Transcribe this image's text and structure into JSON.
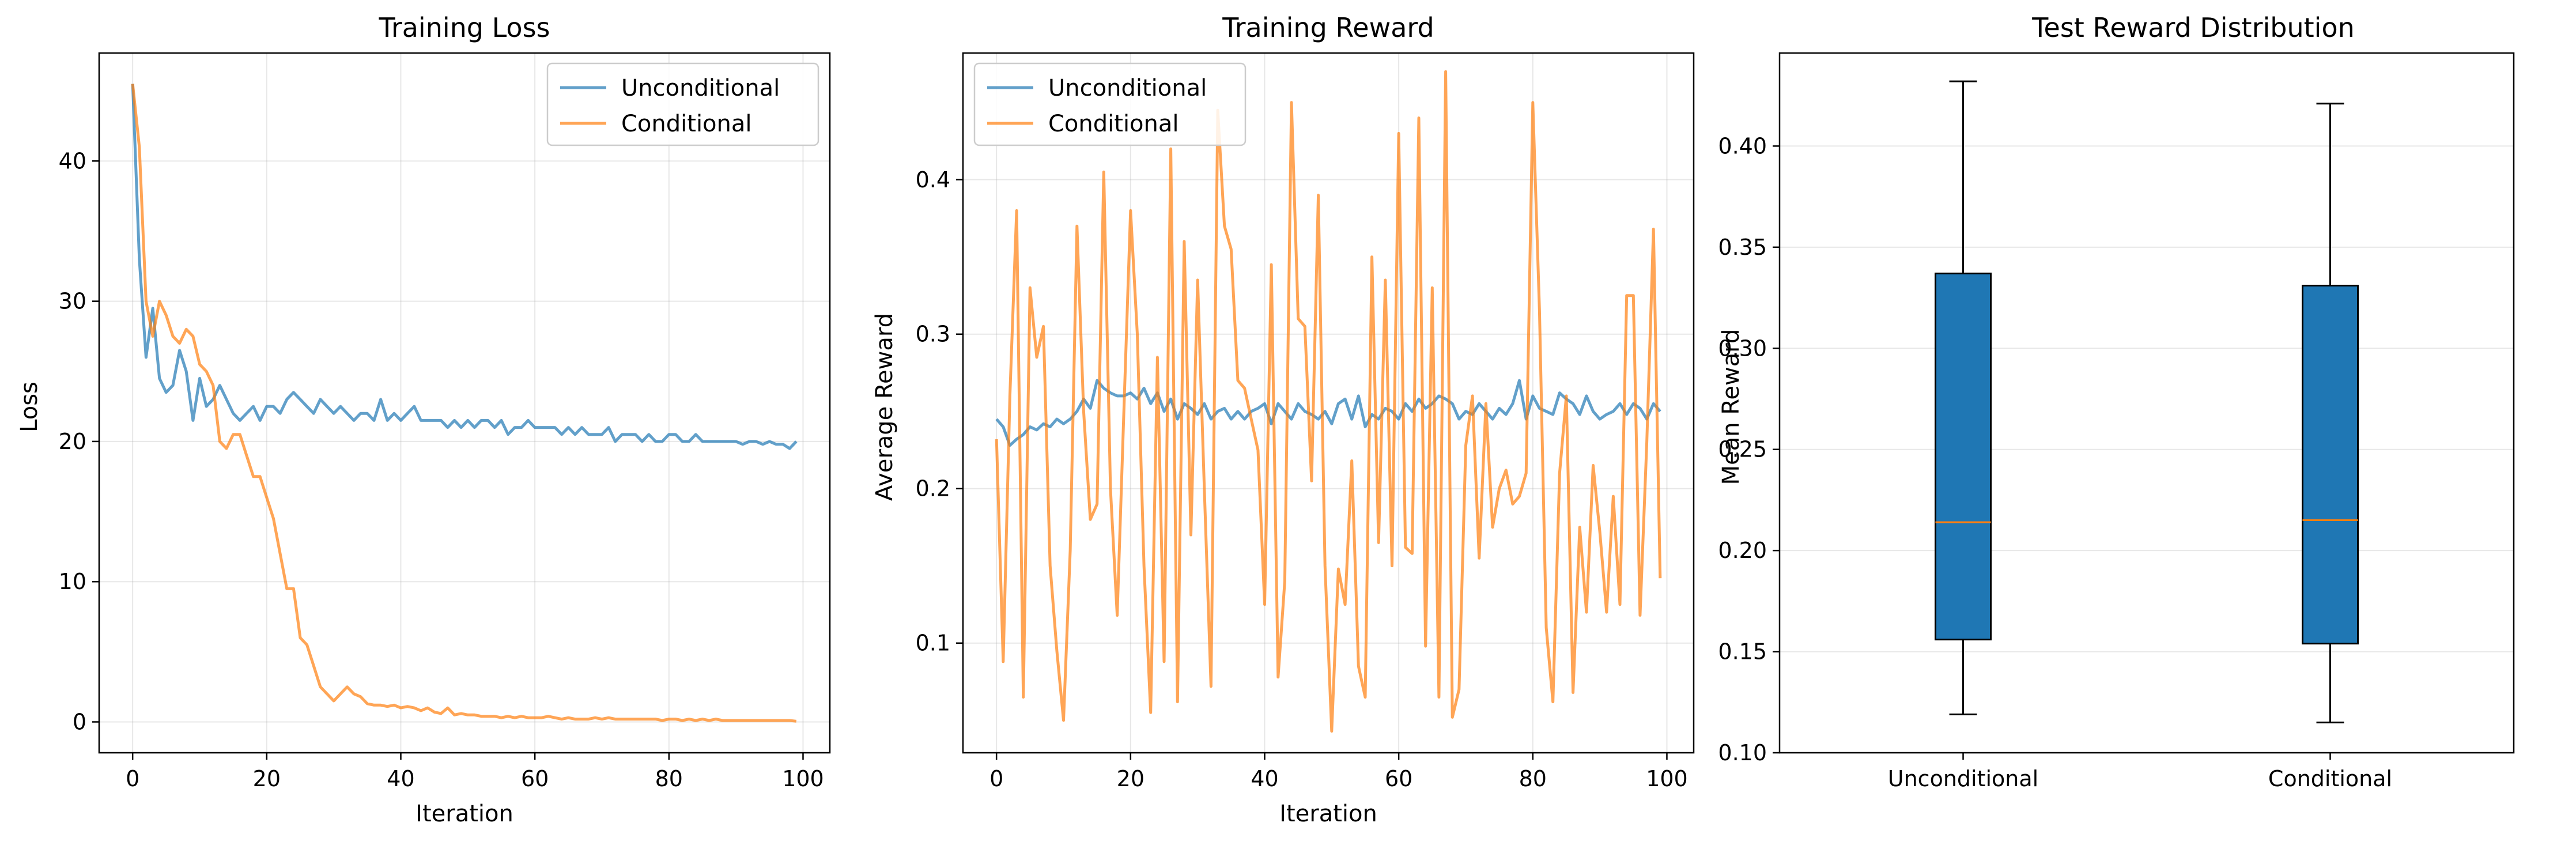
{
  "colors": {
    "unconditional": "#1f77b4",
    "conditional": "#ff7f0e",
    "box_fill": "#1f77b4",
    "median": "#ff7f0e",
    "grid": "#b0b0b0"
  },
  "chart_data": [
    {
      "type": "line",
      "title": "Training Loss",
      "xlabel": "Iteration",
      "ylabel": "Loss",
      "xlim": [
        -5,
        104
      ],
      "ylim": [
        -2.2,
        47.7
      ],
      "xticks": [
        0,
        20,
        40,
        60,
        80,
        100
      ],
      "yticks": [
        0,
        10,
        20,
        30,
        40
      ],
      "grid": true,
      "legend_position": "top-right",
      "series": [
        {
          "name": "Unconditional",
          "color": "#1f77b4",
          "x": [
            0,
            1,
            2,
            3,
            4,
            5,
            6,
            7,
            8,
            9,
            10,
            11,
            12,
            13,
            14,
            15,
            16,
            17,
            18,
            19,
            20,
            21,
            22,
            23,
            24,
            25,
            26,
            27,
            28,
            29,
            30,
            31,
            32,
            33,
            34,
            35,
            36,
            37,
            38,
            39,
            40,
            41,
            42,
            43,
            44,
            45,
            46,
            47,
            48,
            49,
            50,
            51,
            52,
            53,
            54,
            55,
            56,
            57,
            58,
            59,
            60,
            61,
            62,
            63,
            64,
            65,
            66,
            67,
            68,
            69,
            70,
            71,
            72,
            73,
            74,
            75,
            76,
            77,
            78,
            79,
            80,
            81,
            82,
            83,
            84,
            85,
            86,
            87,
            88,
            89,
            90,
            91,
            92,
            93,
            94,
            95,
            96,
            97,
            98,
            99
          ],
          "y": [
            45.5,
            33.0,
            26.0,
            29.5,
            24.5,
            23.5,
            24.0,
            26.5,
            25.0,
            21.5,
            24.5,
            22.5,
            23.0,
            24.0,
            23.0,
            22.0,
            21.5,
            22.0,
            22.5,
            21.5,
            22.5,
            22.5,
            22.0,
            23.0,
            23.5,
            23.0,
            22.5,
            22.0,
            23.0,
            22.5,
            22.0,
            22.5,
            22.0,
            21.5,
            22.0,
            22.0,
            21.5,
            23.0,
            21.5,
            22.0,
            21.5,
            22.0,
            22.5,
            21.5,
            21.5,
            21.5,
            21.5,
            21.0,
            21.5,
            21.0,
            21.5,
            21.0,
            21.5,
            21.5,
            21.0,
            21.5,
            20.5,
            21.0,
            21.0,
            21.5,
            21.0,
            21.0,
            21.0,
            21.0,
            20.5,
            21.0,
            20.5,
            21.0,
            20.5,
            20.5,
            20.5,
            21.0,
            20.0,
            20.5,
            20.5,
            20.5,
            20.0,
            20.5,
            20.0,
            20.0,
            20.5,
            20.5,
            20.0,
            20.0,
            20.5,
            20.0,
            20.0,
            20.0,
            20.0,
            20.0,
            20.0,
            19.8,
            20.0,
            20.0,
            19.8,
            20.0,
            19.8,
            19.8,
            19.5,
            20.0
          ],
          "label": "Unconditional"
        },
        {
          "name": "Conditional",
          "color": "#ff7f0e",
          "x": [
            0,
            1,
            2,
            3,
            4,
            5,
            6,
            7,
            8,
            9,
            10,
            11,
            12,
            13,
            14,
            15,
            16,
            17,
            18,
            19,
            20,
            21,
            22,
            23,
            24,
            25,
            26,
            27,
            28,
            29,
            30,
            31,
            32,
            33,
            34,
            35,
            36,
            37,
            38,
            39,
            40,
            41,
            42,
            43,
            44,
            45,
            46,
            47,
            48,
            49,
            50,
            51,
            52,
            53,
            54,
            55,
            56,
            57,
            58,
            59,
            60,
            61,
            62,
            63,
            64,
            65,
            66,
            67,
            68,
            69,
            70,
            71,
            72,
            73,
            74,
            75,
            76,
            77,
            78,
            79,
            80,
            81,
            82,
            83,
            84,
            85,
            86,
            87,
            88,
            89,
            90,
            91,
            92,
            93,
            94,
            95,
            96,
            97,
            98,
            99
          ],
          "y": [
            45.5,
            41.0,
            30.0,
            27.5,
            30.0,
            29.0,
            27.5,
            27.0,
            28.0,
            27.5,
            25.5,
            25.0,
            24.0,
            20.0,
            19.5,
            20.5,
            20.5,
            19.0,
            17.5,
            17.5,
            16.0,
            14.5,
            12.0,
            9.5,
            9.5,
            6.0,
            5.5,
            4.0,
            2.5,
            2.0,
            1.5,
            2.0,
            2.5,
            2.0,
            1.8,
            1.3,
            1.2,
            1.2,
            1.1,
            1.2,
            1.0,
            1.1,
            1.0,
            0.8,
            1.0,
            0.7,
            0.6,
            1.0,
            0.5,
            0.6,
            0.5,
            0.5,
            0.4,
            0.4,
            0.4,
            0.3,
            0.4,
            0.3,
            0.4,
            0.3,
            0.3,
            0.3,
            0.4,
            0.3,
            0.2,
            0.3,
            0.2,
            0.2,
            0.2,
            0.3,
            0.2,
            0.3,
            0.2,
            0.2,
            0.2,
            0.2,
            0.2,
            0.2,
            0.2,
            0.1,
            0.2,
            0.2,
            0.1,
            0.2,
            0.1,
            0.2,
            0.1,
            0.2,
            0.1,
            0.1,
            0.1,
            0.1,
            0.1,
            0.1,
            0.1,
            0.1,
            0.1,
            0.1,
            0.1,
            0.05
          ],
          "label": "Conditional"
        }
      ]
    },
    {
      "type": "line",
      "title": "Training Reward",
      "xlabel": "Iteration",
      "ylabel": "Average Reward",
      "xlim": [
        -5,
        104
      ],
      "ylim": [
        0.029,
        0.482
      ],
      "xticks": [
        0,
        20,
        40,
        60,
        80,
        100
      ],
      "yticks": [
        0.1,
        0.2,
        0.3,
        0.4
      ],
      "ytick_labels": [
        "0.1",
        "0.2",
        "0.3",
        "0.4"
      ],
      "grid": true,
      "legend_position": "top-left",
      "series": [
        {
          "name": "Unconditional",
          "color": "#1f77b4",
          "x": [
            0,
            1,
            2,
            3,
            4,
            5,
            6,
            7,
            8,
            9,
            10,
            11,
            12,
            13,
            14,
            15,
            16,
            17,
            18,
            19,
            20,
            21,
            22,
            23,
            24,
            25,
            26,
            27,
            28,
            29,
            30,
            31,
            32,
            33,
            34,
            35,
            36,
            37,
            38,
            39,
            40,
            41,
            42,
            43,
            44,
            45,
            46,
            47,
            48,
            49,
            50,
            51,
            52,
            53,
            54,
            55,
            56,
            57,
            58,
            59,
            60,
            61,
            62,
            63,
            64,
            65,
            66,
            67,
            68,
            69,
            70,
            71,
            72,
            73,
            74,
            75,
            76,
            77,
            78,
            79,
            80,
            81,
            82,
            83,
            84,
            85,
            86,
            87,
            88,
            89,
            90,
            91,
            92,
            93,
            94,
            95,
            96,
            97,
            98,
            99
          ],
          "y": [
            0.245,
            0.24,
            0.228,
            0.232,
            0.235,
            0.24,
            0.238,
            0.242,
            0.24,
            0.245,
            0.242,
            0.245,
            0.25,
            0.258,
            0.252,
            0.27,
            0.265,
            0.262,
            0.26,
            0.26,
            0.262,
            0.258,
            0.265,
            0.255,
            0.262,
            0.25,
            0.258,
            0.245,
            0.255,
            0.252,
            0.248,
            0.255,
            0.245,
            0.25,
            0.252,
            0.245,
            0.25,
            0.245,
            0.25,
            0.252,
            0.255,
            0.242,
            0.255,
            0.25,
            0.245,
            0.255,
            0.25,
            0.248,
            0.245,
            0.25,
            0.242,
            0.255,
            0.258,
            0.245,
            0.26,
            0.24,
            0.248,
            0.245,
            0.252,
            0.25,
            0.245,
            0.255,
            0.25,
            0.258,
            0.252,
            0.255,
            0.26,
            0.258,
            0.255,
            0.245,
            0.25,
            0.248,
            0.255,
            0.25,
            0.245,
            0.252,
            0.248,
            0.255,
            0.27,
            0.245,
            0.26,
            0.252,
            0.25,
            0.248,
            0.262,
            0.258,
            0.255,
            0.248,
            0.26,
            0.25,
            0.245,
            0.248,
            0.25,
            0.255,
            0.248,
            0.255,
            0.252,
            0.245,
            0.255,
            0.25
          ],
          "label": "Unconditional"
        },
        {
          "name": "Conditional",
          "color": "#ff7f0e",
          "x": [
            0,
            1,
            2,
            3,
            4,
            5,
            6,
            7,
            8,
            9,
            10,
            11,
            12,
            13,
            14,
            15,
            16,
            17,
            18,
            19,
            20,
            21,
            22,
            23,
            24,
            25,
            26,
            27,
            28,
            29,
            30,
            31,
            32,
            33,
            34,
            35,
            36,
            37,
            38,
            39,
            40,
            41,
            42,
            43,
            44,
            45,
            46,
            47,
            48,
            49,
            50,
            51,
            52,
            53,
            54,
            55,
            56,
            57,
            58,
            59,
            60,
            61,
            62,
            63,
            64,
            65,
            66,
            67,
            68,
            69,
            70,
            71,
            72,
            73,
            74,
            75,
            76,
            77,
            78,
            79,
            80,
            81,
            82,
            83,
            84,
            85,
            86,
            87,
            88,
            89,
            90,
            91,
            92,
            93,
            94,
            95,
            96,
            97,
            98,
            99
          ],
          "y": [
            0.232,
            0.088,
            0.26,
            0.38,
            0.065,
            0.33,
            0.285,
            0.305,
            0.15,
            0.095,
            0.05,
            0.16,
            0.37,
            0.25,
            0.18,
            0.19,
            0.405,
            0.2,
            0.118,
            0.25,
            0.38,
            0.3,
            0.15,
            0.055,
            0.285,
            0.088,
            0.42,
            0.062,
            0.36,
            0.17,
            0.335,
            0.2,
            0.072,
            0.445,
            0.37,
            0.355,
            0.27,
            0.265,
            0.245,
            0.225,
            0.125,
            0.345,
            0.078,
            0.14,
            0.45,
            0.31,
            0.305,
            0.205,
            0.39,
            0.15,
            0.043,
            0.148,
            0.125,
            0.218,
            0.085,
            0.065,
            0.35,
            0.165,
            0.335,
            0.15,
            0.43,
            0.162,
            0.158,
            0.44,
            0.098,
            0.33,
            0.065,
            0.47,
            0.052,
            0.07,
            0.228,
            0.26,
            0.155,
            0.255,
            0.175,
            0.2,
            0.212,
            0.19,
            0.195,
            0.21,
            0.45,
            0.315,
            0.11,
            0.062,
            0.21,
            0.26,
            0.068,
            0.175,
            0.12,
            0.215,
            0.172,
            0.12,
            0.195,
            0.125,
            0.325,
            0.325,
            0.118,
            0.23,
            0.368,
            0.142
          ],
          "label": "Conditional"
        }
      ]
    },
    {
      "type": "box",
      "title": "Test Reward Distribution",
      "xlabel": "",
      "ylabel": "Mean Reward",
      "ylim": [
        0.1,
        0.446
      ],
      "yticks": [
        0.1,
        0.15,
        0.2,
        0.25,
        0.3,
        0.35,
        0.4
      ],
      "ytick_labels": [
        "0.10",
        "0.15",
        "0.20",
        "0.25",
        "0.30",
        "0.35",
        "0.40"
      ],
      "grid": true,
      "categories": [
        "Unconditional",
        "Conditional"
      ],
      "boxes": [
        {
          "name": "Unconditional",
          "whisker_low": 0.119,
          "q1": 0.156,
          "median": 0.214,
          "q3": 0.337,
          "whisker_high": 0.432
        },
        {
          "name": "Conditional",
          "whisker_low": 0.115,
          "q1": 0.154,
          "median": 0.215,
          "q3": 0.331,
          "whisker_high": 0.421
        }
      ]
    }
  ]
}
